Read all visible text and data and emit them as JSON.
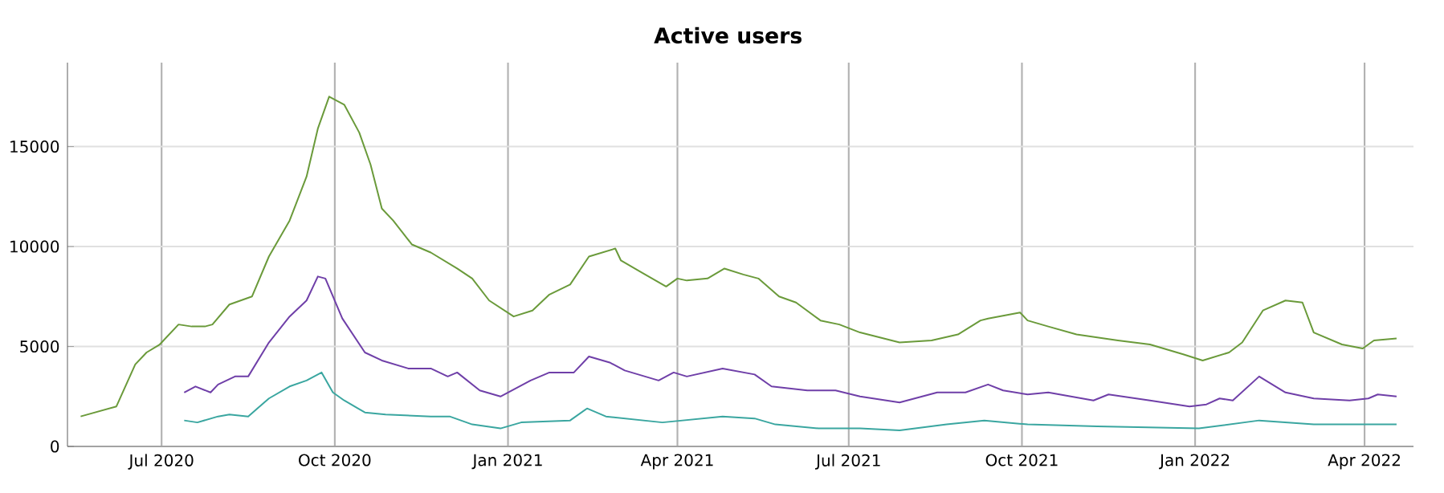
{
  "chart_data": {
    "type": "line",
    "title": "Active users",
    "xlim": [
      "2020-05-12",
      "2022-04-27"
    ],
    "xticks": [
      {
        "value": "2020-07-01",
        "label": "Jul 2020"
      },
      {
        "value": "2020-10-01",
        "label": "Oct 2020"
      },
      {
        "value": "2021-01-01",
        "label": "Jan 2021"
      },
      {
        "value": "2021-04-01",
        "label": "Apr 2021"
      },
      {
        "value": "2021-07-01",
        "label": "Jul 2021"
      },
      {
        "value": "2021-10-01",
        "label": "Oct 2021"
      },
      {
        "value": "2022-01-01",
        "label": "Jan 2022"
      },
      {
        "value": "2022-04-01",
        "label": "Apr 2022"
      }
    ],
    "ylim": [
      0,
      19200
    ],
    "yticks": [
      0,
      5000,
      10000,
      15000
    ],
    "grid": true,
    "marker": "none",
    "line_style": "solid",
    "series": [
      {
        "color": "#6a9a3a",
        "x": [
          "2020-05-19",
          "2020-06-07",
          "2020-06-17",
          "2020-06-23",
          "2020-06-30",
          "2020-07-10",
          "2020-07-17",
          "2020-07-24",
          "2020-07-28",
          "2020-08-06",
          "2020-08-18",
          "2020-08-27",
          "2020-09-07",
          "2020-09-16",
          "2020-09-22",
          "2020-09-28",
          "2020-10-06",
          "2020-10-14",
          "2020-10-20",
          "2020-10-26",
          "2020-11-01",
          "2020-11-11",
          "2020-11-21",
          "2020-12-05",
          "2020-12-13",
          "2020-12-22",
          "2021-01-04",
          "2021-01-14",
          "2021-01-23",
          "2021-02-03",
          "2021-02-13",
          "2021-02-27",
          "2021-03-02",
          "2021-03-13",
          "2021-03-26",
          "2021-04-01",
          "2021-04-06",
          "2021-04-17",
          "2021-04-26",
          "2021-05-06",
          "2021-05-14",
          "2021-05-25",
          "2021-06-03",
          "2021-06-16",
          "2021-06-26",
          "2021-07-07",
          "2021-07-28",
          "2021-08-14",
          "2021-08-28",
          "2021-09-09",
          "2021-09-13",
          "2021-09-30",
          "2021-10-04",
          "2021-10-15",
          "2021-10-30",
          "2021-11-21",
          "2021-12-08",
          "2021-12-26",
          "2022-01-05",
          "2022-01-19",
          "2022-01-26",
          "2022-02-06",
          "2022-02-18",
          "2022-02-27",
          "2022-03-05",
          "2022-03-20",
          "2022-03-31",
          "2022-04-06",
          "2022-04-18"
        ],
        "values": [
          1500,
          2000,
          4100,
          4700,
          5100,
          6100,
          6000,
          6000,
          6100,
          7100,
          7500,
          9500,
          11300,
          13500,
          15900,
          17500,
          17100,
          15700,
          14100,
          11900,
          11300,
          10100,
          9700,
          8900,
          8400,
          7300,
          6500,
          6800,
          7600,
          8100,
          9500,
          9900,
          9300,
          8700,
          8000,
          8400,
          8300,
          8400,
          8900,
          8600,
          8400,
          7500,
          7200,
          6300,
          6100,
          5700,
          5200,
          5300,
          5600,
          6300,
          6400,
          6700,
          6300,
          6000,
          5600,
          5300,
          5100,
          4600,
          4300,
          4700,
          5200,
          6800,
          7300,
          7200,
          5700,
          5100,
          4900,
          5300,
          5400
        ]
      },
      {
        "color": "#6f3fa8",
        "x": [
          "2020-07-13",
          "2020-07-19",
          "2020-07-27",
          "2020-07-31",
          "2020-08-09",
          "2020-08-16",
          "2020-08-27",
          "2020-09-07",
          "2020-09-16",
          "2020-09-22",
          "2020-09-26",
          "2020-10-05",
          "2020-10-17",
          "2020-10-26",
          "2020-11-09",
          "2020-11-21",
          "2020-11-30",
          "2020-12-05",
          "2020-12-17",
          "2020-12-28",
          "2021-01-13",
          "2021-01-23",
          "2021-02-05",
          "2021-02-13",
          "2021-02-24",
          "2021-03-04",
          "2021-03-22",
          "2021-03-30",
          "2021-04-06",
          "2021-04-25",
          "2021-05-12",
          "2021-05-21",
          "2021-06-09",
          "2021-06-24",
          "2021-07-07",
          "2021-07-28",
          "2021-08-17",
          "2021-09-01",
          "2021-09-13",
          "2021-09-21",
          "2021-10-04",
          "2021-10-15",
          "2021-11-08",
          "2021-11-16",
          "2021-12-08",
          "2021-12-29",
          "2022-01-07",
          "2022-01-14",
          "2022-01-21",
          "2022-02-04",
          "2022-02-18",
          "2022-03-05",
          "2022-03-24",
          "2022-04-03",
          "2022-04-08",
          "2022-04-18"
        ],
        "values": [
          2700,
          3000,
          2700,
          3100,
          3500,
          3500,
          5200,
          6500,
          7300,
          8500,
          8400,
          6400,
          4700,
          4300,
          3900,
          3900,
          3500,
          3700,
          2800,
          2500,
          3300,
          3700,
          3700,
          4500,
          4200,
          3800,
          3300,
          3700,
          3500,
          3900,
          3600,
          3000,
          2800,
          2800,
          2500,
          2200,
          2700,
          2700,
          3100,
          2800,
          2600,
          2700,
          2300,
          2600,
          2300,
          2000,
          2100,
          2400,
          2300,
          3500,
          2700,
          2400,
          2300,
          2400,
          2600,
          2500
        ]
      },
      {
        "color": "#3aa6a0",
        "x": [
          "2020-07-13",
          "2020-07-20",
          "2020-07-31",
          "2020-08-06",
          "2020-08-16",
          "2020-08-27",
          "2020-09-07",
          "2020-09-16",
          "2020-09-24",
          "2020-09-30",
          "2020-10-06",
          "2020-10-17",
          "2020-10-28",
          "2020-11-21",
          "2020-12-01",
          "2020-12-13",
          "2020-12-28",
          "2021-01-08",
          "2021-02-03",
          "2021-02-12",
          "2021-02-22",
          "2021-03-24",
          "2021-04-25",
          "2021-05-12",
          "2021-05-23",
          "2021-06-15",
          "2021-07-07",
          "2021-07-28",
          "2021-08-22",
          "2021-09-11",
          "2021-10-04",
          "2021-11-10",
          "2022-01-03",
          "2022-02-04",
          "2022-03-05",
          "2022-04-18"
        ],
        "values": [
          1300,
          1200,
          1500,
          1600,
          1500,
          2400,
          3000,
          3300,
          3700,
          2700,
          2300,
          1700,
          1600,
          1500,
          1500,
          1100,
          900,
          1200,
          1300,
          1900,
          1500,
          1200,
          1500,
          1400,
          1100,
          900,
          900,
          800,
          1100,
          1300,
          1100,
          1000,
          900,
          1300,
          1100,
          1100
        ]
      }
    ]
  }
}
